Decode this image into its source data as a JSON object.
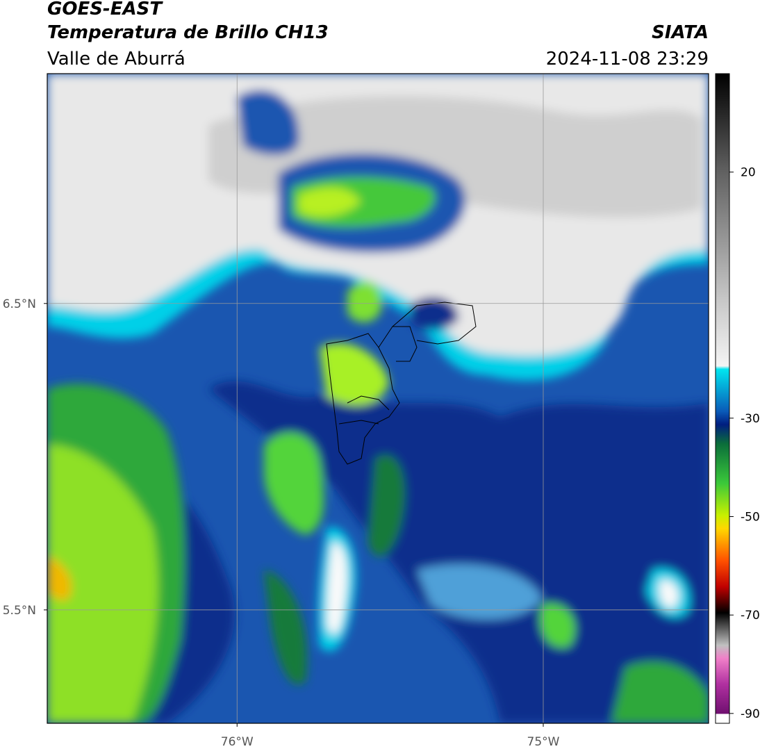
{
  "header": {
    "title": "GOES-EAST",
    "subtitle": "Temperatura de Brillo CH13",
    "region": "Valle de Aburrá",
    "source": "SIATA",
    "timestamp": "2024-11-08 23:29"
  },
  "map": {
    "lonlim": [
      -76.62,
      -74.46
    ],
    "latlim": [
      5.13,
      7.25
    ],
    "lat_ticks": [
      {
        "value": 6.5,
        "label": "6.5°N"
      },
      {
        "value": 5.5,
        "label": "5.5°N"
      }
    ],
    "lon_ticks": [
      {
        "value": -76,
        "label": "76°W"
      },
      {
        "value": -75,
        "label": "75°W"
      }
    ]
  },
  "colorbar": {
    "lim": [
      -92,
      40
    ],
    "ticks": [
      20,
      -30,
      -50,
      -70,
      -90
    ]
  }
}
